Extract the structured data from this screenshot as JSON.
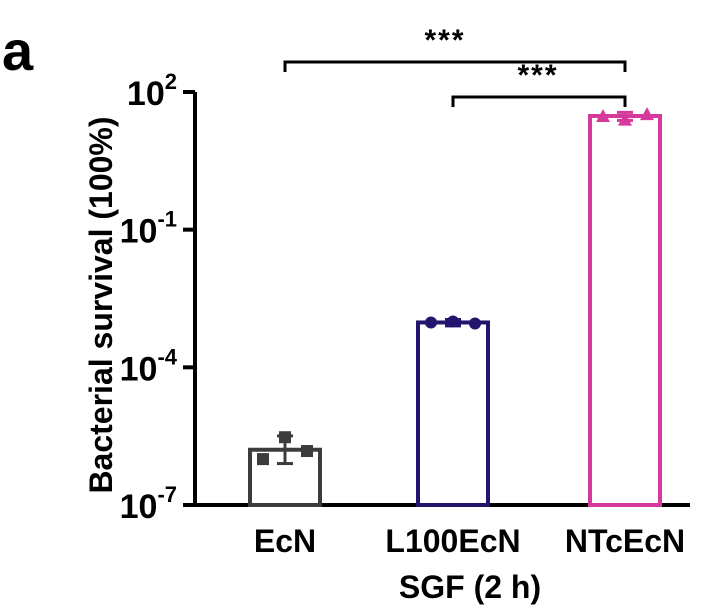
{
  "panel_label": "a",
  "chart_data": {
    "type": "bar",
    "categories": [
      "EcN",
      "L100EcN",
      "NTcEcN"
    ],
    "values": [
      1.6e-06,
      0.00095,
      30
    ],
    "error": [
      {
        "low": 8e-07,
        "high": 3.2e-06
      },
      {
        "low": 0.0008,
        "high": 0.0011
      },
      {
        "low": 24,
        "high": 36
      }
    ],
    "points": [
      [
        1e-06,
        3e-06,
        1.5e-06
      ],
      [
        0.00095,
        0.001,
        0.0009
      ],
      [
        30,
        25,
        33
      ]
    ],
    "colors": [
      "#3c3c3c",
      "#22156e",
      "#d6399c"
    ],
    "markers": [
      "square",
      "circle",
      "triangle"
    ],
    "ylabel": "Bacterial survival (100%)",
    "xlabel": "SGF (2 h)",
    "yscale": "log",
    "ylim": [
      1e-07,
      100
    ],
    "yticks": [
      {
        "base": "10",
        "exp": "-7",
        "value": 1e-07
      },
      {
        "base": "10",
        "exp": "-4",
        "value": 0.0001
      },
      {
        "base": "10",
        "exp": "-1",
        "value": 0.1
      },
      {
        "base": "10",
        "exp": "2",
        "value": 100
      }
    ],
    "significance": [
      {
        "from": 0,
        "to": 2,
        "label": "***"
      },
      {
        "from": 1,
        "to": 2,
        "label": "***"
      }
    ]
  }
}
